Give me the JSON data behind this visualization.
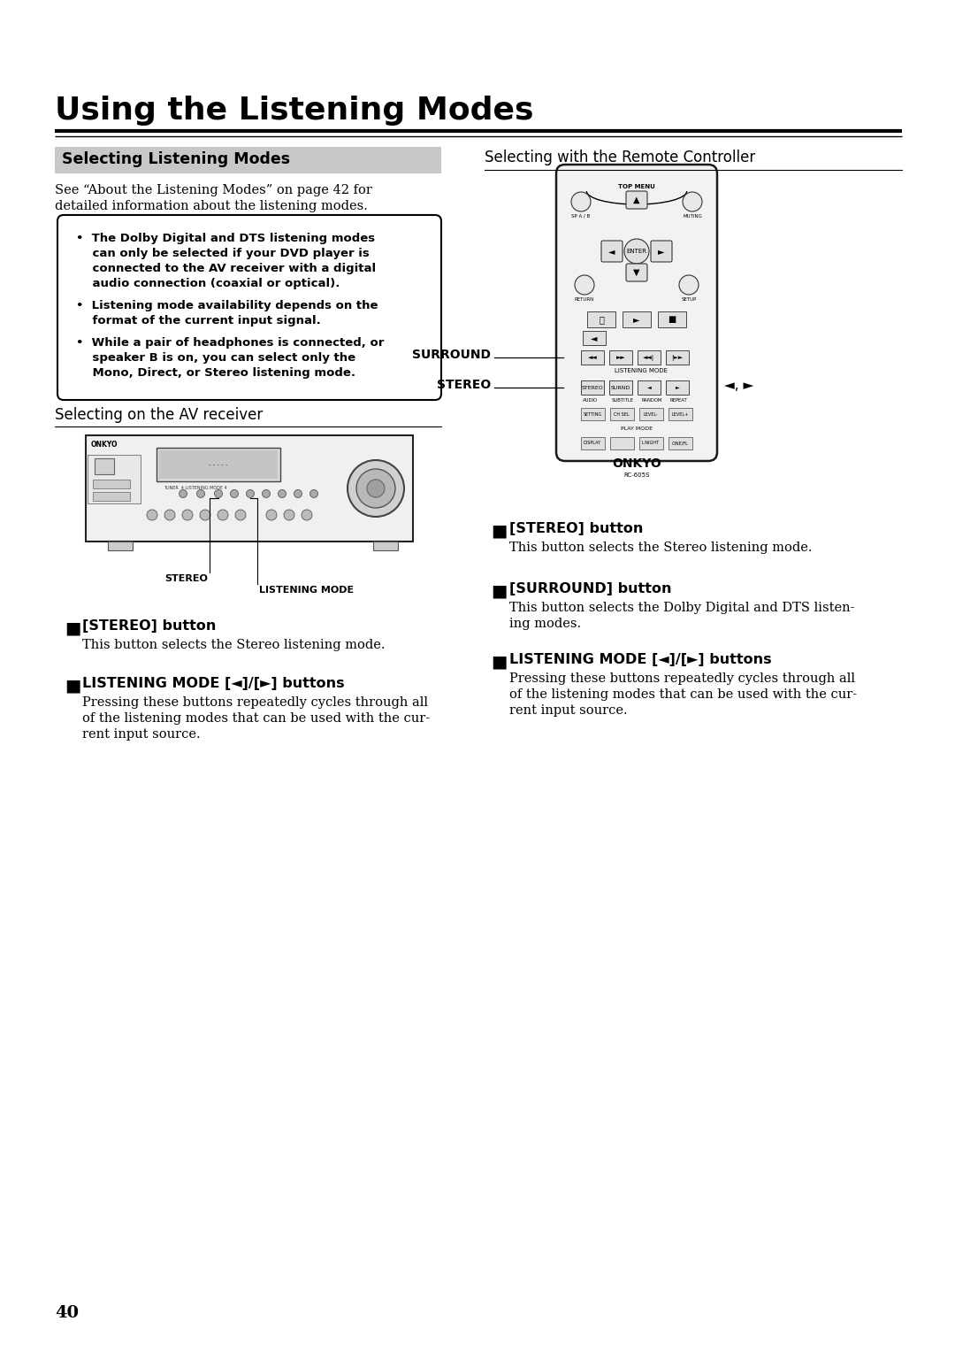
{
  "page_number": "40",
  "bg_color": "#ffffff",
  "title": "Using the Listening Modes",
  "section_header": "Selecting Listening Modes",
  "section_header_bg": "#c8c8c8",
  "intro_text_1": "See “About the Listening Modes” on page 42 for",
  "intro_text_2": "detailed information about the listening modes.",
  "bullet_points": [
    "•  The Dolby Digital and DTS listening modes\n    can only be selected if your DVD player is\n    connected to the AV receiver with a digital\n    audio connection (coaxial or optical).",
    "•  Listening mode availability depends on the\n    format of the current input signal.",
    "•  While a pair of headphones is connected, or\n    speaker B is on, you can select only the\n    Mono, Direct, or Stereo listening mode."
  ],
  "left_subheader": "Selecting on the AV receiver",
  "right_subheader": "Selecting with the Remote Controller",
  "stereo_label": "STEREO",
  "listening_mode_label": "LISTENING MODE",
  "stereo_button_title_left": "[STEREO] button",
  "stereo_button_desc_left": "This button selects the Stereo listening mode.",
  "listening_mode_title_left": "LISTENING MODE [◄]/[►] buttons",
  "listening_mode_desc_left": "Pressing these buttons repeatedly cycles through all\nof the listening modes that can be used with the cur-\nrent input source.",
  "surround_label": "SURROUND",
  "stereo_label_right": "STEREO",
  "stereo_button_title_right": "[STEREO] button",
  "stereo_button_desc_right": "This button selects the Stereo listening mode.",
  "surround_button_title": "[SURROUND] button",
  "surround_button_desc": "This button selects the Dolby Digital and DTS listen-\ning modes.",
  "listening_mode_title_right": "LISTENING MODE [◄]/[►] buttons",
  "listening_mode_desc_right": "Pressing these buttons repeatedly cycles through all\nof the listening modes that can be used with the cur-\nrent input source.",
  "onkyo_remote_text": "ONKYO",
  "remote_model": "RC-605S"
}
